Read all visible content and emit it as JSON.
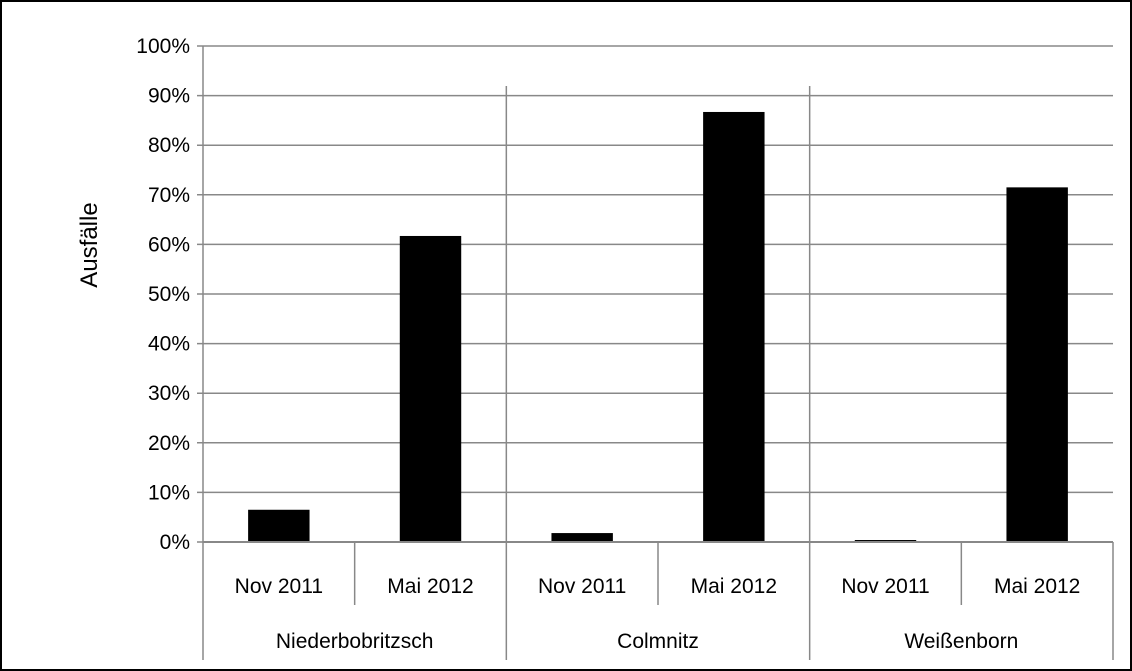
{
  "chart_data": {
    "type": "bar",
    "ylabel": "Ausfälle",
    "xlabel": "",
    "ylim": [
      0,
      100
    ],
    "yticks": [
      "0%",
      "10%",
      "20%",
      "30%",
      "40%",
      "50%",
      "60%",
      "70%",
      "80%",
      "90%",
      "100%"
    ],
    "grid": true,
    "legend": "none",
    "groups": [
      {
        "name": "Niederbobritzsch",
        "categories": [
          "Nov 2011",
          "Mai 2012"
        ],
        "values": [
          6.5,
          61.7
        ]
      },
      {
        "name": "Colmnitz",
        "categories": [
          "Nov 2011",
          "Mai 2012"
        ],
        "values": [
          1.8,
          86.7
        ]
      },
      {
        "name": "Weißenborn",
        "categories": [
          "Nov 2011",
          "Mai 2012"
        ],
        "values": [
          0.4,
          71.5
        ]
      }
    ],
    "colors": {
      "bar": "#000000",
      "grid": "#888888",
      "frame": "#000000"
    }
  }
}
